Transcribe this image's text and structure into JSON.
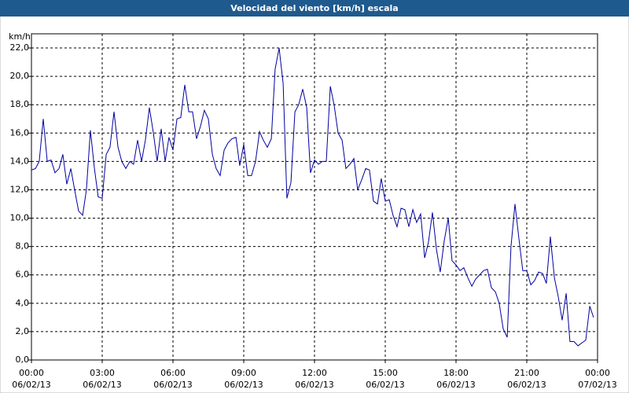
{
  "chart_data": {
    "type": "line",
    "title": "Velocidad del viento [km/h] escala",
    "y_unit": "km/h",
    "x": [
      0,
      0.17,
      0.33,
      0.5,
      0.67,
      0.83,
      1,
      1.17,
      1.33,
      1.5,
      1.67,
      1.83,
      2,
      2.17,
      2.33,
      2.5,
      2.67,
      2.83,
      3,
      3.17,
      3.33,
      3.5,
      3.67,
      3.83,
      4,
      4.17,
      4.33,
      4.5,
      4.67,
      4.83,
      5,
      5.17,
      5.33,
      5.5,
      5.67,
      5.83,
      6,
      6.17,
      6.33,
      6.5,
      6.67,
      6.83,
      7,
      7.17,
      7.33,
      7.5,
      7.67,
      7.83,
      8,
      8.17,
      8.33,
      8.5,
      8.67,
      8.83,
      9,
      9.17,
      9.33,
      9.5,
      9.67,
      9.83,
      10,
      10.17,
      10.33,
      10.5,
      10.67,
      10.83,
      11,
      11.17,
      11.33,
      11.5,
      11.67,
      11.83,
      12,
      12.17,
      12.33,
      12.5,
      12.67,
      12.83,
      13,
      13.17,
      13.33,
      13.5,
      13.67,
      13.83,
      14,
      14.17,
      14.33,
      14.5,
      14.67,
      14.83,
      15,
      15.17,
      15.33,
      15.5,
      15.67,
      15.83,
      16,
      16.17,
      16.33,
      16.5,
      16.67,
      16.83,
      17,
      17.17,
      17.33,
      17.5,
      17.67,
      17.83,
      18,
      18.17,
      18.33,
      18.5,
      18.67,
      18.83,
      19,
      19.17,
      19.33,
      19.5,
      19.67,
      19.83,
      20,
      20.17,
      20.33,
      20.5,
      20.67,
      20.83,
      21,
      21.17,
      21.33,
      21.5,
      21.67,
      21.83,
      22,
      22.17,
      22.33,
      22.5,
      22.67,
      22.83,
      23,
      23.17,
      23.33,
      23.5,
      23.67,
      23.83
    ],
    "series": [
      {
        "color": "#0000a0",
        "values": [
          13.4,
          13.5,
          14,
          17,
          14,
          14.1,
          13.2,
          13.5,
          14.5,
          12.4,
          13.5,
          12,
          10.5,
          10.2,
          12,
          16.2,
          13.5,
          11.5,
          11.4,
          14.5,
          15,
          17.5,
          15,
          14,
          13.5,
          14,
          13.8,
          15.5,
          14,
          15.5,
          17.8,
          16,
          14,
          16.3,
          14,
          15.7,
          14.8,
          17,
          17.1,
          19.4,
          17.5,
          17.5,
          15.6,
          16.5,
          17.6,
          17,
          14.5,
          13.5,
          13,
          14.8,
          15.3,
          15.6,
          15.7,
          13.7,
          15.2,
          13,
          13,
          14,
          16.1,
          15.5,
          15,
          15.6,
          20.5,
          22,
          19.5,
          11.4,
          12.5,
          17.5,
          18,
          19.1,
          17.8,
          13.2,
          14.1,
          13.8,
          14,
          14,
          19.3,
          18,
          16,
          15.5,
          13.5,
          13.8,
          14.2,
          12,
          12.7,
          13.5,
          13.4,
          11.2,
          11,
          12.8,
          11.2,
          11.3,
          10.2,
          9.4,
          10.7,
          10.6,
          9.4,
          10.6,
          9.7,
          10.3,
          7.2,
          8.3,
          10.4,
          7.8,
          6.2,
          8.4,
          10,
          7,
          6.7,
          6.3,
          6.5,
          5.8,
          5.2,
          5.7,
          6,
          6.3,
          6.4,
          5.1,
          4.8,
          4,
          2.2,
          1.6,
          8,
          11,
          8.5,
          6.3,
          6.3,
          5.3,
          5.6,
          6.2,
          6.1,
          5.4,
          8.7,
          5.8,
          4.5,
          2.8,
          4.7,
          1.3,
          1.3,
          1,
          1.2,
          1.4,
          3.8,
          3
        ]
      }
    ],
    "xlim": [
      0,
      24
    ],
    "xticks": [
      {
        "value": 0,
        "label": [
          "00:00",
          "06/02/13"
        ]
      },
      {
        "value": 3,
        "label": [
          "03:00",
          "06/02/13"
        ]
      },
      {
        "value": 6,
        "label": [
          "06:00",
          "06/02/13"
        ]
      },
      {
        "value": 9,
        "label": [
          "09:00",
          "06/02/13"
        ]
      },
      {
        "value": 12,
        "label": [
          "12:00",
          "06/02/13"
        ]
      },
      {
        "value": 15,
        "label": [
          "15:00",
          "06/02/13"
        ]
      },
      {
        "value": 18,
        "label": [
          "18:00",
          "06/02/13"
        ]
      },
      {
        "value": 21,
        "label": [
          "21:00",
          "06/02/13"
        ]
      },
      {
        "value": 24,
        "label": [
          "00:00",
          "07/02/13"
        ]
      }
    ],
    "ylim": [
      0,
      23
    ],
    "yticks": [
      {
        "value": 0,
        "label": "0,0"
      },
      {
        "value": 2,
        "label": "2,0"
      },
      {
        "value": 4,
        "label": "4,0"
      },
      {
        "value": 6,
        "label": "6,0"
      },
      {
        "value": 8,
        "label": "8,0"
      },
      {
        "value": 10,
        "label": "10,0"
      },
      {
        "value": 12,
        "label": "12,0"
      },
      {
        "value": 14,
        "label": "14,0"
      },
      {
        "value": 16,
        "label": "16,0"
      },
      {
        "value": 18,
        "label": "18,0"
      },
      {
        "value": 20,
        "label": "20,0"
      },
      {
        "value": 22,
        "label": "22,0"
      }
    ],
    "grid": true
  }
}
